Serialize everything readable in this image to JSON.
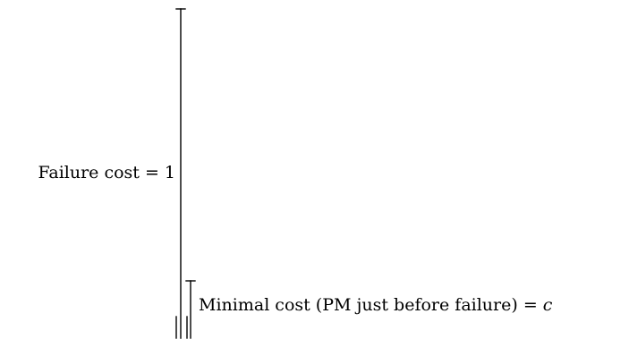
{
  "diagram": {
    "failure_cost": {
      "label": "Failure cost = 1"
    },
    "minimal_cost": {
      "label_prefix": "Minimal cost (PM just before failure) = ",
      "label_variable": "c"
    }
  }
}
